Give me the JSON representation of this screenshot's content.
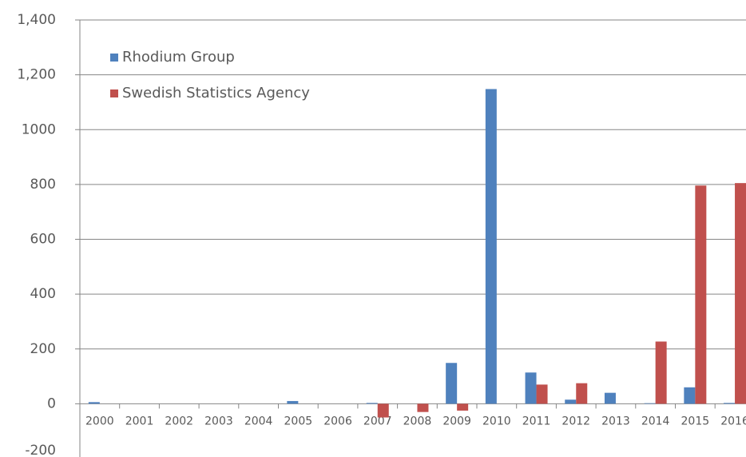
{
  "chart_data": {
    "type": "bar",
    "categories": [
      "2000",
      "2001",
      "2002",
      "2003",
      "2004",
      "2005",
      "2006",
      "2007",
      "2008",
      "2009",
      "2010",
      "2011",
      "2012",
      "2013",
      "2014",
      "2015",
      "2016"
    ],
    "series": [
      {
        "name": "Rhodium Group",
        "color": "#4f81bd",
        "values": [
          6,
          0,
          0,
          0,
          0,
          10,
          0,
          3,
          0,
          149,
          1148,
          114,
          15,
          40,
          2,
          60,
          3
        ]
      },
      {
        "name": "Swedish Statistics Agency",
        "color": "#c0504d",
        "values": [
          0,
          0,
          0,
          0,
          0,
          0,
          0,
          -50,
          -30,
          -25,
          0,
          70,
          75,
          0,
          227,
          796,
          805
        ]
      }
    ],
    "ylim": [
      -200,
      1400
    ],
    "yticks": [
      -200,
      0,
      200,
      400,
      600,
      800,
      1000,
      {
        "value": 1200,
        "label": "1,200"
      },
      {
        "value": 1400,
        "label": "1,400"
      }
    ],
    "grid": true,
    "legend": "top-left"
  }
}
